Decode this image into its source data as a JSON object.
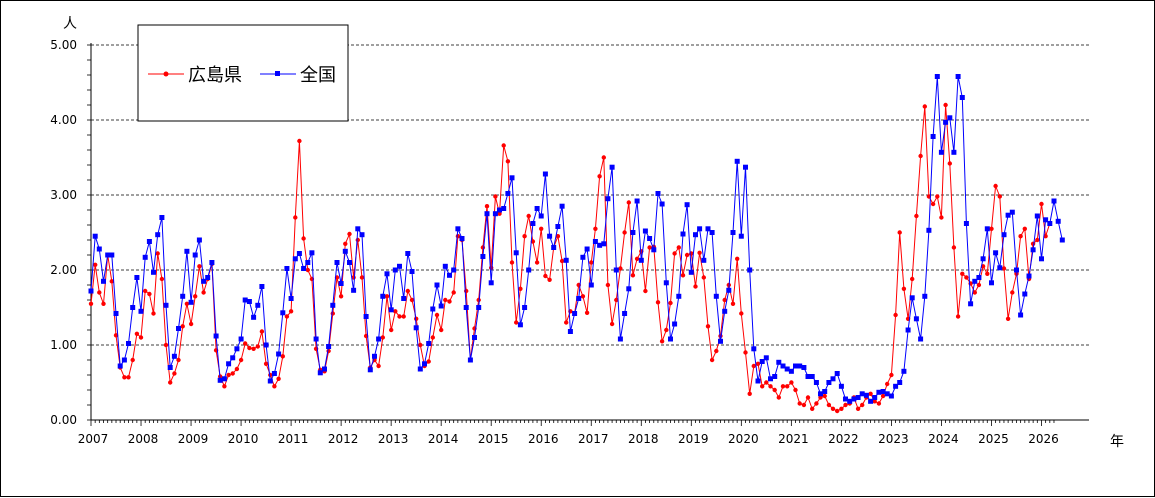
{
  "chart_data": {
    "type": "line",
    "title": "",
    "ylabel": "人",
    "xlabel": "年",
    "ylim": [
      0,
      5
    ],
    "yticks": [
      "0.00",
      "1.00",
      "2.00",
      "3.00",
      "4.00",
      "5.00"
    ],
    "x_tick_labels": [
      "2007",
      "2008",
      "2009",
      "2010",
      "2011",
      "2012",
      "2013",
      "2014",
      "2015",
      "2016",
      "2017",
      "2018",
      "2019",
      "2020",
      "2021",
      "2022",
      "2023",
      "2024",
      "2025",
      "2026"
    ],
    "x_start_year": 2007,
    "x_end_year": 2026.95,
    "grid": "horizontal dashed",
    "legend_position": "top-left",
    "series": [
      {
        "name": "広島県",
        "color": "#ff0000",
        "marker": "circle",
        "values": [
          1.55,
          2.07,
          1.7,
          1.55,
          2.2,
          1.85,
          1.13,
          0.7,
          0.57,
          0.57,
          0.8,
          1.15,
          1.1,
          1.72,
          1.68,
          1.42,
          2.22,
          1.88,
          1.0,
          0.5,
          0.62,
          0.8,
          1.25,
          1.55,
          1.28,
          1.65,
          2.05,
          1.7,
          1.88,
          2.08,
          0.93,
          0.58,
          0.45,
          0.6,
          0.62,
          0.68,
          0.8,
          1.02,
          0.96,
          0.95,
          0.98,
          1.18,
          0.75,
          0.6,
          0.45,
          0.55,
          0.85,
          1.38,
          1.45,
          2.7,
          3.72,
          2.42,
          2.0,
          1.88,
          0.95,
          0.67,
          0.65,
          0.92,
          1.42,
          1.9,
          1.65,
          2.35,
          2.48,
          1.9,
          2.4,
          1.9,
          1.12,
          0.7,
          0.8,
          0.72,
          1.1,
          1.65,
          1.2,
          1.45,
          1.38,
          1.38,
          1.72,
          1.6,
          1.35,
          1.0,
          0.72,
          0.78,
          1.1,
          1.4,
          1.2,
          1.6,
          1.58,
          1.7,
          2.45,
          2.4,
          1.72,
          0.8,
          1.22,
          1.6,
          2.3,
          2.85,
          2.03,
          2.98,
          2.75,
          3.66,
          3.45,
          2.1,
          1.3,
          1.75,
          2.45,
          2.72,
          2.38,
          2.1,
          2.55,
          1.92,
          1.87,
          2.3,
          2.45,
          2.12,
          1.3,
          1.45,
          1.42,
          1.8,
          1.65,
          1.43,
          2.1,
          2.55,
          3.25,
          3.5,
          1.8,
          1.28,
          1.6,
          2.02,
          2.5,
          2.9,
          1.93,
          2.15,
          2.25,
          1.72,
          2.3,
          2.31,
          1.57,
          1.05,
          1.2,
          1.56,
          2.22,
          2.3,
          1.93,
          2.2,
          2.22,
          1.78,
          2.23,
          1.9,
          1.25,
          0.8,
          0.92,
          1.12,
          1.6,
          1.8,
          1.55,
          2.15,
          1.42,
          0.9,
          0.35,
          0.72,
          0.75,
          0.45,
          0.5,
          0.45,
          0.4,
          0.3,
          0.45,
          0.45,
          0.5,
          0.4,
          0.22,
          0.2,
          0.3,
          0.15,
          0.22,
          0.3,
          0.32,
          0.2,
          0.15,
          0.12,
          0.15,
          0.2,
          0.22,
          0.3,
          0.15,
          0.2,
          0.3,
          0.35,
          0.25,
          0.22,
          0.32,
          0.48,
          0.6,
          1.4,
          2.5,
          1.75,
          1.35,
          1.88,
          2.72,
          3.52,
          4.18,
          2.98,
          2.88,
          2.98,
          2.7,
          4.2,
          3.42,
          2.3,
          1.38,
          1.95,
          1.9,
          1.82,
          1.7,
          1.8,
          2.05,
          1.95,
          2.55,
          3.12,
          2.98,
          2.02,
          1.35,
          1.7,
          1.95,
          2.45,
          2.55,
          1.88,
          2.35,
          2.4,
          2.88,
          2.45,
          2.62
        ]
      },
      {
        "name": "全国",
        "color": "#0000ff",
        "marker": "square",
        "values": [
          1.72,
          2.45,
          2.28,
          1.85,
          2.2,
          2.2,
          1.42,
          0.72,
          0.8,
          1.02,
          1.5,
          1.9,
          1.45,
          2.17,
          2.38,
          1.97,
          2.47,
          2.7,
          1.53,
          0.7,
          0.85,
          1.22,
          1.65,
          2.25,
          1.57,
          2.2,
          2.4,
          1.85,
          1.9,
          2.1,
          1.12,
          0.53,
          0.55,
          0.75,
          0.83,
          0.95,
          1.08,
          1.6,
          1.58,
          1.37,
          1.53,
          1.78,
          1.0,
          0.52,
          0.62,
          0.88,
          1.43,
          2.02,
          1.62,
          2.15,
          2.22,
          2.02,
          2.1,
          2.23,
          1.08,
          0.63,
          0.68,
          0.98,
          1.53,
          2.1,
          1.82,
          2.25,
          2.1,
          1.73,
          2.55,
          2.47,
          1.38,
          0.67,
          0.85,
          1.08,
          1.65,
          1.95,
          1.47,
          2.0,
          2.05,
          1.62,
          2.22,
          1.98,
          1.23,
          0.68,
          0.75,
          1.02,
          1.48,
          1.8,
          1.52,
          2.05,
          1.93,
          2.0,
          2.55,
          2.42,
          1.5,
          0.8,
          1.1,
          1.5,
          2.18,
          2.75,
          1.83,
          2.75,
          2.8,
          2.82,
          3.02,
          3.23,
          2.23,
          1.27,
          1.5,
          2.0,
          2.62,
          2.82,
          2.72,
          3.28,
          2.45,
          2.3,
          2.58,
          2.85,
          2.13,
          1.18,
          1.42,
          1.62,
          2.17,
          2.28,
          1.8,
          2.38,
          2.33,
          2.35,
          2.95,
          3.37,
          2.0,
          1.08,
          1.42,
          1.75,
          2.5,
          2.92,
          2.13,
          2.52,
          2.42,
          2.27,
          3.02,
          2.88,
          1.83,
          1.08,
          1.28,
          1.65,
          2.48,
          2.87,
          1.97,
          2.47,
          2.55,
          2.13,
          2.55,
          2.5,
          1.65,
          1.05,
          1.45,
          1.73,
          2.5,
          3.45,
          2.45,
          3.37,
          2.0,
          0.95,
          0.52,
          0.78,
          0.83,
          0.55,
          0.58,
          0.77,
          0.72,
          0.68,
          0.65,
          0.72,
          0.72,
          0.7,
          0.58,
          0.58,
          0.5,
          0.35,
          0.38,
          0.5,
          0.55,
          0.62,
          0.45,
          0.28,
          0.25,
          0.28,
          0.3,
          0.35,
          0.33,
          0.25,
          0.3,
          0.37,
          0.38,
          0.35,
          0.32,
          0.45,
          0.5,
          0.65,
          1.2,
          1.63,
          1.35,
          1.08,
          1.65,
          2.53,
          3.78,
          4.58,
          3.57,
          3.97,
          4.03,
          3.57,
          4.58,
          4.3,
          2.62,
          1.55,
          1.85,
          1.9,
          2.15,
          2.55,
          1.83,
          2.23,
          2.03,
          2.47,
          2.73,
          2.77,
          2.0,
          1.4,
          1.68,
          1.92,
          2.27,
          2.72,
          2.15,
          2.67,
          2.62,
          2.92,
          2.65,
          2.4
        ]
      }
    ]
  }
}
